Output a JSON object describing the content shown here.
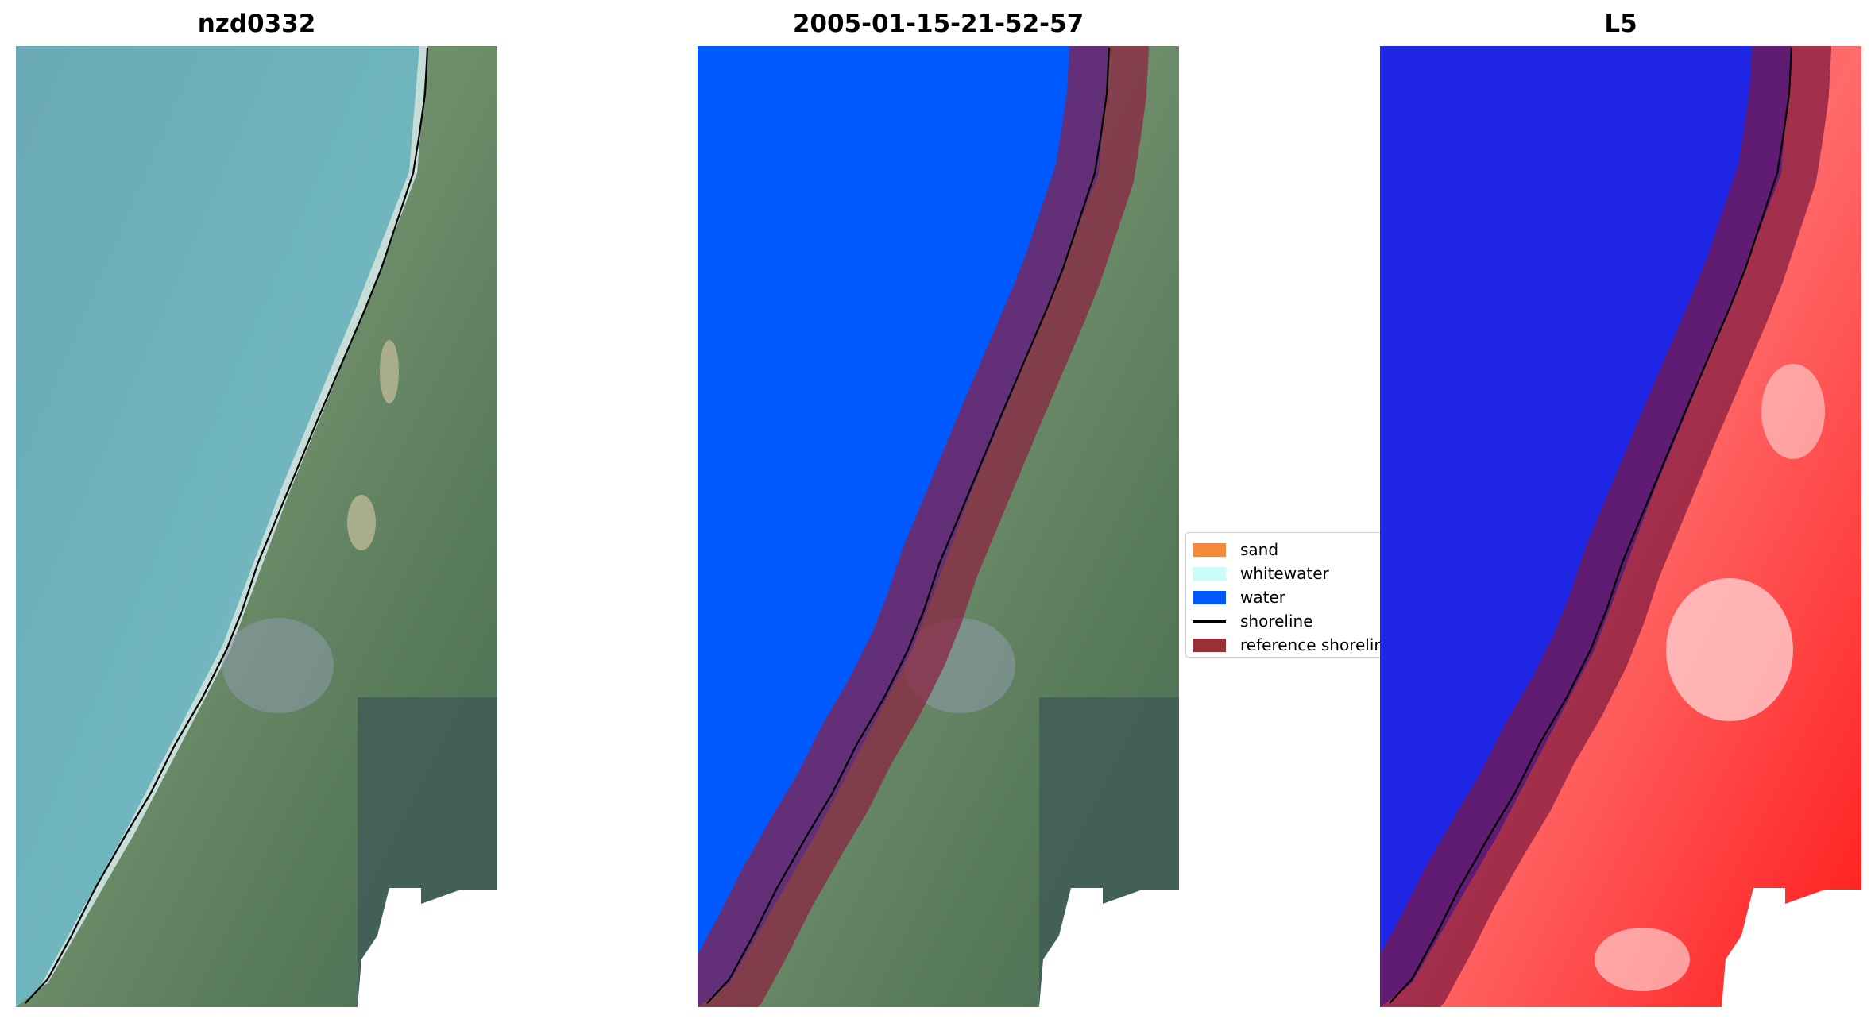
{
  "panels": {
    "left_title": "nzd0332",
    "middle_title": "2005-01-15-21-52-57",
    "right_title": "L5"
  },
  "legend": {
    "items": [
      {
        "label": "sand",
        "color": "#f58a3c"
      },
      {
        "label": "whitewater",
        "color": "#ccfbfb"
      },
      {
        "label": "water",
        "color": "#0059ff"
      },
      {
        "label": "shoreline",
        "color": "#000000"
      },
      {
        "label": "reference shoreline",
        "color": "#9b2f35"
      }
    ]
  }
}
